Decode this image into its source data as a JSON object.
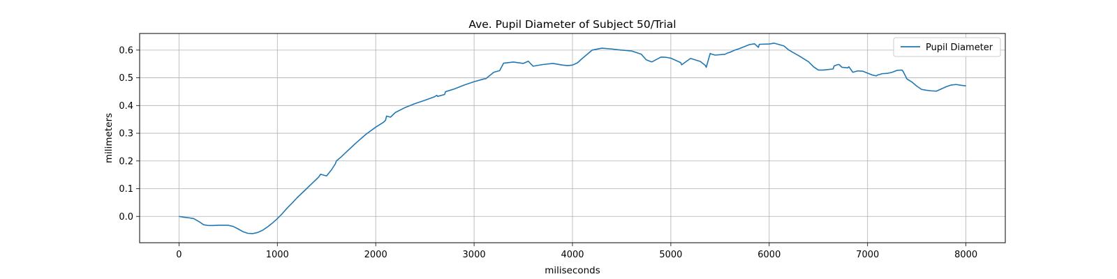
{
  "chart_data": {
    "type": "line",
    "title": "Ave. Pupil Diameter of Subject 50/Trial",
    "xlabel": "miliseconds",
    "ylabel": "milimeters",
    "xlim": [
      -400,
      8400
    ],
    "ylim": [
      -0.095,
      0.66
    ],
    "xticks": [
      0,
      1000,
      2000,
      3000,
      4000,
      5000,
      6000,
      7000,
      8000
    ],
    "yticks": [
      0.0,
      0.1,
      0.2,
      0.3,
      0.4,
      0.5,
      0.6
    ],
    "xtick_labels": [
      "0",
      "1000",
      "2000",
      "3000",
      "4000",
      "5000",
      "6000",
      "7000",
      "8000"
    ],
    "ytick_labels": [
      "0.0",
      "0.1",
      "0.2",
      "0.3",
      "0.4",
      "0.5",
      "0.6"
    ],
    "grid": true,
    "legend_position": "top-right",
    "color": "#1f77b4",
    "series": [
      {
        "name": "Pupil Diameter",
        "x": [
          0,
          50,
          100,
          150,
          200,
          250,
          300,
          350,
          400,
          450,
          500,
          550,
          600,
          650,
          700,
          750,
          800,
          850,
          900,
          950,
          1000,
          1050,
          1100,
          1150,
          1200,
          1250,
          1300,
          1350,
          1400,
          1420,
          1440,
          1500,
          1550,
          1590,
          1600,
          1650,
          1700,
          1800,
          1900,
          2000,
          2080,
          2100,
          2110,
          2150,
          2200,
          2300,
          2400,
          2500,
          2600,
          2620,
          2630,
          2700,
          2710,
          2800,
          2900,
          3000,
          3100,
          3120,
          3200,
          3250,
          3260,
          3300,
          3400,
          3500,
          3540,
          3550,
          3600,
          3700,
          3800,
          3900,
          3950,
          4000,
          4050,
          4100,
          4200,
          4300,
          4400,
          4500,
          4600,
          4700,
          4750,
          4800,
          4810,
          4900,
          4950,
          5000,
          5100,
          5110,
          5200,
          5300,
          5350,
          5360,
          5400,
          5410,
          5450,
          5550,
          5580,
          5600,
          5650,
          5700,
          5800,
          5840,
          5850,
          5890,
          5900,
          6000,
          6050,
          6100,
          6150,
          6160,
          6200,
          6300,
          6400,
          6450,
          6500,
          6550,
          6600,
          6650,
          6660,
          6700,
          6710,
          6740,
          6800,
          6810,
          6850,
          6900,
          6950,
          7000,
          7050,
          7090,
          7100,
          7150,
          7200,
          7250,
          7300,
          7350,
          7360,
          7400,
          7450,
          7500,
          7550,
          7600,
          7650,
          7700,
          7750,
          7800,
          7850,
          7900,
          7950,
          8000
        ],
        "values": [
          0.0,
          -0.003,
          -0.005,
          -0.008,
          -0.018,
          -0.03,
          -0.033,
          -0.033,
          -0.032,
          -0.032,
          -0.032,
          -0.036,
          -0.045,
          -0.055,
          -0.061,
          -0.062,
          -0.058,
          -0.05,
          -0.038,
          -0.024,
          -0.008,
          0.01,
          0.03,
          0.048,
          0.067,
          0.084,
          0.101,
          0.118,
          0.135,
          0.142,
          0.152,
          0.146,
          0.168,
          0.19,
          0.2,
          0.215,
          0.232,
          0.265,
          0.296,
          0.322,
          0.34,
          0.347,
          0.362,
          0.358,
          0.375,
          0.393,
          0.407,
          0.419,
          0.432,
          0.437,
          0.433,
          0.44,
          0.45,
          0.46,
          0.474,
          0.486,
          0.496,
          0.497,
          0.52,
          0.525,
          0.526,
          0.553,
          0.557,
          0.552,
          0.558,
          0.56,
          0.542,
          0.548,
          0.552,
          0.546,
          0.544,
          0.546,
          0.554,
          0.57,
          0.6,
          0.607,
          0.604,
          0.6,
          0.597,
          0.585,
          0.565,
          0.558,
          0.558,
          0.575,
          0.574,
          0.571,
          0.555,
          0.547,
          0.57,
          0.559,
          0.545,
          0.538,
          0.588,
          0.586,
          0.582,
          0.585,
          0.59,
          0.592,
          0.6,
          0.606,
          0.62,
          0.622,
          0.623,
          0.61,
          0.621,
          0.622,
          0.625,
          0.62,
          0.615,
          0.612,
          0.6,
          0.58,
          0.558,
          0.54,
          0.528,
          0.528,
          0.53,
          0.532,
          0.543,
          0.548,
          0.548,
          0.538,
          0.536,
          0.54,
          0.52,
          0.525,
          0.524,
          0.517,
          0.51,
          0.507,
          0.51,
          0.515,
          0.516,
          0.52,
          0.527,
          0.528,
          0.524,
          0.496,
          0.485,
          0.47,
          0.458,
          0.455,
          0.453,
          0.452,
          0.46,
          0.468,
          0.474,
          0.476,
          0.473,
          0.471
        ]
      }
    ]
  }
}
